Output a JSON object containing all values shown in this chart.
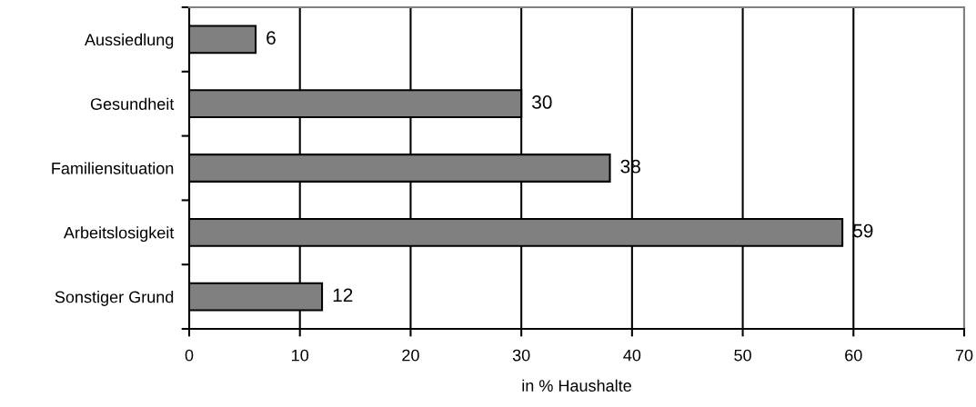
{
  "chart_data": {
    "type": "bar",
    "orientation": "horizontal",
    "xlabel": "in % Haushalte",
    "categories": [
      "Aussiedlung",
      "Gesundheit",
      "Familiensituation",
      "Arbeitslosigkeit",
      "Sonstiger Grund"
    ],
    "values": [
      6,
      30,
      38,
      59,
      12
    ],
    "color": "#808080",
    "xlim": [
      0,
      70
    ],
    "xticks": [
      0,
      10,
      20,
      30,
      40,
      50,
      60,
      70
    ],
    "grid": "x",
    "data_labels": true,
    "legend": false
  }
}
